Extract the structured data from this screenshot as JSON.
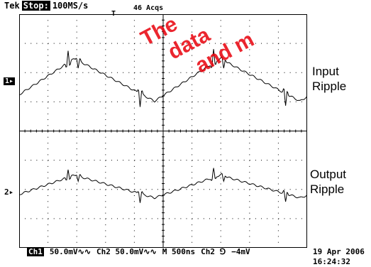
{
  "header": {
    "brand": "Tek",
    "run_state": "Stop:",
    "sample_rate": "100MS/s",
    "acquisitions": "46 Acqs",
    "trigger_marker": "T"
  },
  "channels": {
    "ch1_marker": "1▸",
    "ch2_marker": "2▸",
    "ch1_label_line1": "Input",
    "ch1_label_line2": "Ripple",
    "ch2_label_line1": "Output",
    "ch2_label_line2": "Ripple"
  },
  "footer": {
    "ch1_badge": "Ch1",
    "ch1_scale": "50.0mV∿∿",
    "ch2_scale": "Ch2  50.0mV∿∿",
    "timebase": "M  500ns",
    "trigger": "Ch2 ⅁",
    "trigger_level": "−4mV",
    "date": "19 Apr 2006",
    "time": "16:24:32"
  },
  "watermark": {
    "text_line1": "The",
    "text_line2": "data",
    "text_line3": "and m",
    "color": "#e8000b"
  },
  "colors": {
    "trace": "#000000",
    "grid": "#000000",
    "background": "#ffffff"
  }
}
